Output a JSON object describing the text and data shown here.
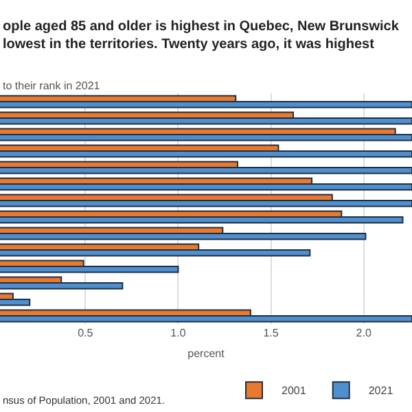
{
  "chart_data": {
    "type": "bar",
    "orientation": "horizontal",
    "title": "ople aged 85 and older is highest in Quebec, New Brunswick\nlowest in the territories. Twenty years ago, it was highest",
    "subtitle": "to their rank in 2021",
    "xlabel": "percent",
    "categories": [
      null,
      null,
      null,
      null,
      null,
      null,
      null,
      null,
      null,
      null,
      null,
      null,
      null,
      null
    ],
    "series": [
      {
        "name": "2001",
        "color": "#e8792f",
        "values": [
          1.31,
          1.62,
          2.17,
          1.54,
          1.32,
          1.72,
          1.83,
          1.88,
          1.24,
          1.11,
          0.49,
          0.37,
          0.11,
          1.39
        ]
      },
      {
        "name": "2021",
        "color": "#4f8fd0",
        "values": [
          2.26,
          2.26,
          2.26,
          2.26,
          2.26,
          2.26,
          2.26,
          2.21,
          2.01,
          1.71,
          1.0,
          0.7,
          0.2,
          2.26
        ]
      }
    ],
    "xlim": [
      0.04,
      2.26
    ],
    "xticks": [
      0.5,
      {
        "value": 1,
        "label": "1.0"
      },
      1.5,
      {
        "value": 2,
        "label": "2.0"
      }
    ],
    "grid": "x",
    "legend": "bottom",
    "tick_labels": "x",
    "annotations": [
      "nsus of Population, 2001 and 2021."
    ]
  }
}
